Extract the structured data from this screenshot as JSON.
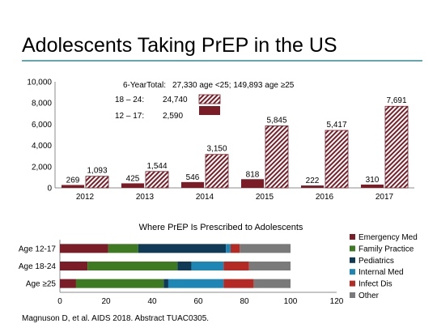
{
  "slide": {
    "title": "Adolescents Taking PrEP in the US",
    "rule_color": "#2e8c96",
    "citation": "Magnuson D, et al. AIDS 2018. Abstract TUAC0305."
  },
  "chart_data": [
    {
      "type": "bar",
      "title": "",
      "xlabel": "",
      "ylabel": "",
      "ylim": [
        0,
        10000
      ],
      "y_ticks": [
        "0",
        "2,000",
        "4,000",
        "6,000",
        "8,000",
        "10,000"
      ],
      "categories": [
        "2012",
        "2013",
        "2014",
        "2015",
        "2016",
        "2017"
      ],
      "series": [
        {
          "name": "12 – 17:",
          "values": [
            269,
            425,
            546,
            818,
            222,
            310
          ],
          "labels": [
            "269",
            "425",
            "546",
            "818",
            "222",
            "310"
          ],
          "color": "#7b1d26",
          "pattern": "solid"
        },
        {
          "name": "18 – 24:",
          "values": [
            1093,
            1544,
            3150,
            5845,
            5417,
            7691
          ],
          "labels": [
            "1,093",
            "1,544",
            "3,150",
            "5,845",
            "5,417",
            "7,691"
          ],
          "color": "#7b1d26",
          "pattern": "diagonal-hatch"
        }
      ],
      "legend": {
        "total_prefix": "6-YearTotal:",
        "total_text": "27,330 age <25; 149,893 age  ≥25",
        "entries": [
          {
            "label": "18 – 24:",
            "value": "24,740"
          },
          {
            "label": "12 – 17:",
            "value": "2,590"
          }
        ]
      }
    },
    {
      "type": "bar",
      "orientation": "horizontal-stacked",
      "title": "Where PrEP Is Prescribed to Adolescents",
      "xlabel": "",
      "ylabel": "",
      "xlim": [
        0,
        120
      ],
      "x_ticks": [
        "0",
        "20",
        "40",
        "60",
        "80",
        "100",
        "120"
      ],
      "categories": [
        "Age 12-17",
        "Age 18-24",
        "Age ≥25"
      ],
      "series": [
        {
          "name": "Emergency Med",
          "values": [
            21,
            12,
            7
          ],
          "color": "#7b1d26"
        },
        {
          "name": "Family Practice",
          "values": [
            13,
            39,
            38
          ],
          "color": "#3e7a22"
        },
        {
          "name": "Pediatrics",
          "values": [
            38,
            6,
            2
          ],
          "color": "#113a56"
        },
        {
          "name": "Internal Med",
          "values": [
            2,
            14,
            24
          ],
          "color": "#1e86b4"
        },
        {
          "name": "Infect Dis",
          "values": [
            4,
            11,
            13
          ],
          "color": "#b52a24"
        },
        {
          "name": "Other",
          "values": [
            22,
            18,
            16
          ],
          "color": "#7a7a7a"
        }
      ],
      "legend_position": "right"
    }
  ]
}
